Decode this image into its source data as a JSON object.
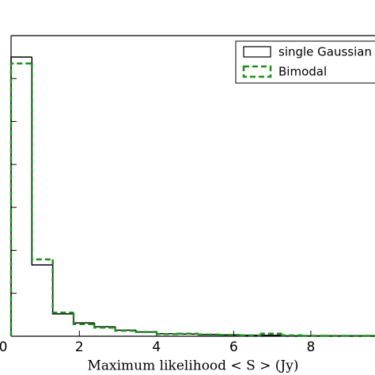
{
  "chart_data": {
    "type": "histogram",
    "xlabel": "Maximum likelihood < S > (Jy)",
    "bins": [
      0.23,
      0.77,
      1.31,
      1.85,
      2.39,
      2.93,
      3.47,
      4.01,
      4.55,
      5.09,
      5.63,
      6.17,
      6.71,
      7.25,
      7.79,
      8.33,
      8.87,
      9.41,
      9.95
    ],
    "series": [
      {
        "name": "single Gaussian",
        "color": "#000000",
        "dashed": false,
        "values": [
          6.5,
          1.66,
          0.52,
          0.31,
          0.22,
          0.14,
          0.1,
          0.06,
          0.05,
          0.04,
          0.03,
          0.02,
          0.02,
          0.01,
          0.01,
          0.01,
          0.01,
          0.01
        ]
      },
      {
        "name": "Bimodal",
        "color": "#1e8c1e",
        "dashed": true,
        "values": [
          6.35,
          1.79,
          0.55,
          0.28,
          0.2,
          0.13,
          0.1,
          0.05,
          0.06,
          0.04,
          0.03,
          0.02,
          0.06,
          0.02,
          0.01,
          0.01,
          0.01,
          0.01
        ]
      }
    ],
    "xlim": [
      0.23,
      9.95
    ],
    "xticks": [
      0,
      2,
      4,
      6,
      8
    ],
    "ylim": [
      0,
      7
    ],
    "yticks": [
      1,
      2,
      3,
      4,
      5,
      6
    ],
    "legend": "upper right"
  }
}
